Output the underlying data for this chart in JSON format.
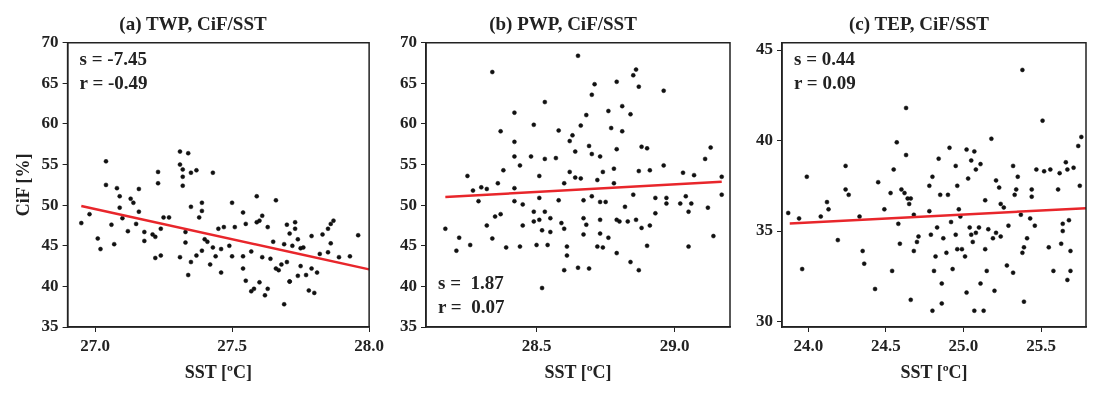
{
  "chart_data": [
    {
      "type": "scatter",
      "title": "(a) TWP, CiF/SST",
      "xlabel": "SST [ºC]",
      "ylabel": "CiF [%]",
      "xlim": [
        26.9,
        28.0
      ],
      "ylim": [
        35,
        70
      ],
      "xticks": [
        {
          "value": 27,
          "label": "27.0"
        },
        27.5,
        {
          "value": 28,
          "label": "28.0"
        }
      ],
      "yticks": [
        35,
        40,
        45,
        50,
        55,
        60,
        65,
        70
      ],
      "annotations": [
        "s = -7.45",
        "r = -0.49"
      ],
      "series": [
        {
          "marker": "circle",
          "color": "#111111",
          "x": [
            26.95,
            26.98,
            27.01,
            27.02,
            27.04,
            27.04,
            27.06,
            27.07,
            27.08,
            27.09,
            27.09,
            27.1,
            27.12,
            27.13,
            27.14,
            27.15,
            27.16,
            27.16,
            27.18,
            27.18,
            27.21,
            27.22,
            27.22,
            27.23,
            27.23,
            27.24,
            27.24,
            27.25,
            27.27,
            27.31,
            27.31,
            27.31,
            27.32,
            27.32,
            27.32,
            27.33,
            27.33,
            27.34,
            27.34,
            27.35,
            27.35,
            27.35,
            27.37,
            27.37,
            27.38,
            27.39,
            27.39,
            27.39,
            27.4,
            27.41,
            27.42,
            27.43,
            27.43,
            27.44,
            27.45,
            27.46,
            27.46,
            27.47,
            27.49,
            27.5,
            27.5,
            27.51,
            27.54,
            27.54,
            27.54,
            27.55,
            27.55,
            27.57,
            27.57,
            27.58,
            27.59,
            27.59,
            27.6,
            27.6,
            27.61,
            27.61,
            27.62,
            27.63,
            27.63,
            27.64,
            27.65,
            27.66,
            27.66,
            27.67,
            27.68,
            27.69,
            27.69,
            27.7,
            27.7,
            27.71,
            27.71,
            27.71,
            27.72,
            27.73,
            27.73,
            27.74,
            27.74,
            27.75,
            27.75,
            27.76,
            27.77,
            27.78,
            27.79,
            27.79,
            27.8,
            27.81,
            27.82,
            27.83,
            27.85,
            27.85,
            27.86,
            27.86,
            27.87,
            27.89,
            27.93,
            27.96
          ],
          "values": [
            47.8,
            48.9,
            45.9,
            44.6,
            52.5,
            55.4,
            47.6,
            45.2,
            52.1,
            51.1,
            49.7,
            48.4,
            46.8,
            50.8,
            50.3,
            47.7,
            49.2,
            52.0,
            46.7,
            45.6,
            46.4,
            46.1,
            43.5,
            54.1,
            52.7,
            47.1,
            43.8,
            48.5,
            48.5,
            56.6,
            55.0,
            43.6,
            54.4,
            52.4,
            53.5,
            46.7,
            45.4,
            41.4,
            56.4,
            49.8,
            43.0,
            54.0,
            54.3,
            43.8,
            48.5,
            44.4,
            49.3,
            50.3,
            45.8,
            45.5,
            42.7,
            54.0,
            44.8,
            43.7,
            47.1,
            41.7,
            44.6,
            47.3,
            45.0,
            43.7,
            50.3,
            47.3,
            43.7,
            49.1,
            42.2,
            47.7,
            40.7,
            39.4,
            44.3,
            39.7,
            51.1,
            47.9,
            48.1,
            40.5,
            43.6,
            48.7,
            38.9,
            47.3,
            39.7,
            43.4,
            45.5,
            50.6,
            42.2,
            42.0,
            42.7,
            37.8,
            45.2,
            43.0,
            47.6,
            46.5,
            40.6,
            40.6,
            45.0,
            47.1,
            47.9,
            45.8,
            41.3,
            42.5,
            44.7,
            44.8,
            41.4,
            39.5,
            46.2,
            42.2,
            39.2,
            41.7,
            44.0,
            46.4,
            47.1,
            44.2,
            45.3,
            47.7,
            48.1,
            43.6,
            43.7,
            46.3
          ]
        },
        {
          "type": "line",
          "marker": "none",
          "color": "#e8262b",
          "x": [
            26.95,
            28.0
          ],
          "values": [
            49.9,
            42.1
          ]
        }
      ]
    },
    {
      "type": "scatter",
      "title": "(b) PWP, CiF/SST",
      "xlabel": "SST [ºC]",
      "xlim": [
        28.1,
        29.2
      ],
      "ylim": [
        35,
        70
      ],
      "xticks": [
        28.5,
        {
          "value": 29,
          "label": "29.0"
        }
      ],
      "yticks": [
        35,
        40,
        45,
        50,
        55,
        60,
        65,
        70
      ],
      "annotations": [
        "s =  1.87",
        "r =  0.07"
      ],
      "series": [
        {
          "marker": "circle",
          "color": "#111111",
          "x": [
            28.17,
            28.21,
            28.22,
            28.25,
            28.26,
            28.27,
            28.29,
            28.3,
            28.32,
            28.32,
            28.34,
            28.34,
            28.35,
            28.36,
            28.37,
            28.37,
            28.38,
            28.39,
            28.42,
            28.42,
            28.42,
            28.42,
            28.42,
            28.44,
            28.44,
            28.45,
            28.45,
            28.48,
            28.49,
            28.49,
            28.49,
            28.5,
            28.51,
            28.51,
            28.51,
            28.52,
            28.52,
            28.53,
            28.53,
            28.53,
            28.54,
            28.55,
            28.55,
            28.57,
            28.58,
            28.58,
            28.59,
            28.6,
            28.6,
            28.6,
            28.61,
            28.61,
            28.62,
            28.62,
            28.63,
            28.64,
            28.64,
            28.65,
            28.65,
            28.66,
            28.66,
            28.67,
            28.67,
            28.67,
            28.68,
            28.68,
            28.69,
            28.69,
            28.7,
            28.7,
            28.7,
            28.71,
            28.72,
            28.72,
            28.73,
            28.73,
            28.73,
            28.73,
            28.74,
            28.74,
            28.75,
            28.76,
            28.76,
            28.77,
            28.78,
            28.78,
            28.79,
            28.79,
            28.79,
            28.79,
            28.8,
            28.81,
            28.81,
            28.82,
            28.83,
            28.84,
            28.84,
            28.85,
            28.85,
            28.86,
            28.86,
            28.87,
            28.87,
            28.87,
            28.88,
            28.88,
            28.9,
            28.9,
            28.91,
            28.91,
            28.93,
            28.93,
            28.96,
            28.96,
            28.97,
            28.97,
            29.02,
            29.03,
            29.04,
            29.05,
            29.05,
            29.06,
            29.07,
            29.11,
            29.12,
            29.13,
            29.14,
            29.17,
            29.17
          ],
          "values": [
            47.1,
            44.4,
            46.0,
            53.6,
            45.1,
            51.8,
            50.5,
            52.2,
            52.0,
            47.5,
            66.4,
            45.9,
            48.6,
            52.7,
            48.9,
            59.1,
            54.3,
            44.8,
            61.4,
            57.8,
            56.0,
            52.1,
            50.5,
            44.9,
            54.9,
            47.5,
            50.1,
            56.0,
            48.0,
            59.9,
            49.2,
            45.1,
            48.2,
            53.6,
            50.9,
            46.9,
            39.8,
            62.7,
            55.7,
            49.2,
            45.1,
            46.7,
            48.4,
            55.8,
            50.6,
            59.2,
            47.8,
            47.1,
            52.7,
            42.0,
            44.9,
            43.8,
            57.9,
            54.1,
            58.6,
            53.4,
            56.6,
            68.4,
            42.3,
            59.8,
            53.3,
            48.4,
            46.4,
            50.6,
            61.1,
            47.6,
            42.2,
            57.3,
            56.3,
            63.6,
            51.1,
            64.9,
            44.9,
            53.1,
            46.5,
            50.4,
            48.2,
            56.0,
            54.1,
            44.8,
            50.4,
            61.6,
            46.0,
            59.5,
            54.5,
            52.7,
            48.2,
            56.9,
            65.2,
            44.1,
            48.0,
            62.2,
            59.1,
            49.8,
            48.0,
            43.0,
            61.2,
            51.3,
            66.0,
            66.7,
            48.2,
            42.0,
            64.6,
            54.2,
            47.2,
            57.2,
            45.0,
            57.0,
            54.3,
            47.5,
            49.0,
            50.9,
            54.9,
            64.1,
            50.9,
            50.2,
            50.2,
            54.0,
            51.1,
            44.9,
            49.2,
            50.2,
            53.7,
            55.7,
            49.7,
            57.1,
            46.2,
            53.5,
            51.3
          ]
        },
        {
          "type": "line",
          "marker": "none",
          "color": "#e8262b",
          "x": [
            28.17,
            29.17
          ],
          "values": [
            51.0,
            52.9
          ]
        }
      ]
    },
    {
      "type": "scatter",
      "title": "(c) TEP, CiF/SST",
      "xlabel": "SST [ºC]",
      "xlim": [
        23.83,
        25.79
      ],
      "ylim": [
        29.7,
        45.4
      ],
      "xticks": [
        {
          "value": 24,
          "label": "24.0"
        },
        24.5,
        {
          "value": 25,
          "label": "25.0"
        },
        25.5
      ],
      "yticks": [
        30,
        35,
        40,
        45
      ],
      "annotations": [
        "s = 0.44",
        "r = 0.09"
      ],
      "series": [
        {
          "marker": "circle",
          "color": "#111111",
          "x": [
            23.87,
            23.94,
            23.96,
            23.99,
            24.08,
            24.12,
            24.13,
            24.19,
            24.24,
            24.24,
            24.26,
            24.33,
            24.35,
            24.36,
            24.43,
            24.45,
            24.49,
            24.53,
            24.54,
            24.55,
            24.57,
            24.58,
            24.59,
            24.6,
            24.62,
            24.63,
            24.63,
            24.64,
            24.65,
            24.66,
            24.66,
            24.68,
            24.68,
            24.7,
            24.71,
            24.78,
            24.78,
            24.79,
            24.8,
            24.8,
            24.81,
            24.82,
            24.83,
            24.84,
            24.85,
            24.86,
            24.86,
            24.87,
            24.89,
            24.9,
            24.91,
            24.92,
            24.93,
            24.95,
            24.95,
            24.96,
            24.96,
            24.97,
            24.98,
            24.99,
            25.01,
            25.02,
            25.02,
            25.03,
            25.04,
            25.05,
            25.05,
            25.06,
            25.07,
            25.07,
            25.08,
            25.08,
            25.1,
            25.11,
            25.11,
            25.13,
            25.14,
            25.14,
            25.15,
            25.16,
            25.18,
            25.19,
            25.2,
            25.21,
            25.21,
            25.23,
            25.24,
            25.24,
            25.26,
            25.28,
            25.29,
            25.32,
            25.32,
            25.33,
            25.34,
            25.35,
            25.37,
            25.38,
            25.38,
            25.39,
            25.39,
            25.41,
            25.43,
            25.44,
            25.44,
            25.46,
            25.47,
            25.51,
            25.52,
            25.55,
            25.56,
            25.58,
            25.61,
            25.62,
            25.63,
            25.64,
            25.64,
            25.66,
            25.67,
            25.67,
            25.68,
            25.69,
            25.69,
            25.71,
            25.74,
            25.75,
            25.76
          ],
          "values": [
            36.0,
            35.7,
            32.9,
            38.0,
            35.8,
            36.6,
            36.2,
            34.5,
            38.6,
            37.3,
            37.0,
            35.8,
            33.9,
            33.2,
            31.8,
            37.7,
            36.2,
            37.1,
            32.8,
            38.4,
            39.9,
            35.4,
            34.3,
            37.3,
            37.1,
            39.2,
            41.8,
            36.8,
            36.5,
            31.2,
            36.8,
            35.9,
            33.9,
            34.4,
            34.7,
            36.1,
            37.5,
            34.8,
            38.0,
            30.6,
            32.8,
            33.6,
            35.2,
            39.0,
            37.0,
            32.1,
            31.0,
            34.6,
            33.8,
            37.0,
            39.6,
            35.5,
            32.9,
            34.8,
            38.6,
            37.5,
            34.0,
            36.2,
            35.8,
            34.0,
            33.6,
            31.6,
            39.5,
            37.9,
            35.2,
            38.9,
            34.8,
            34.4,
            39.4,
            30.6,
            34.9,
            38.4,
            35.2,
            32.1,
            38.7,
            30.6,
            36.7,
            34.0,
            32.8,
            35.1,
            40.1,
            34.6,
            31.7,
            37.8,
            34.9,
            37.4,
            36.5,
            34.7,
            36.3,
            33.1,
            35.3,
            38.6,
            32.7,
            37.0,
            37.3,
            38.0,
            35.9,
            33.8,
            43.9,
            34.1,
            31.1,
            34.6,
            35.7,
            36.9,
            37.3,
            35.3,
            38.4,
            41.1,
            38.3,
            34.1,
            38.4,
            32.8,
            37.3,
            38.2,
            34.3,
            35.4,
            35.0,
            38.8,
            38.4,
            32.3,
            35.6,
            33.9,
            32.8,
            38.5,
            39.7,
            37.5,
            40.2
          ]
        },
        {
          "type": "line",
          "marker": "none",
          "color": "#e8262b",
          "x": [
            23.88,
            25.79
          ],
          "values": [
            35.42,
            36.26
          ]
        }
      ]
    }
  ]
}
